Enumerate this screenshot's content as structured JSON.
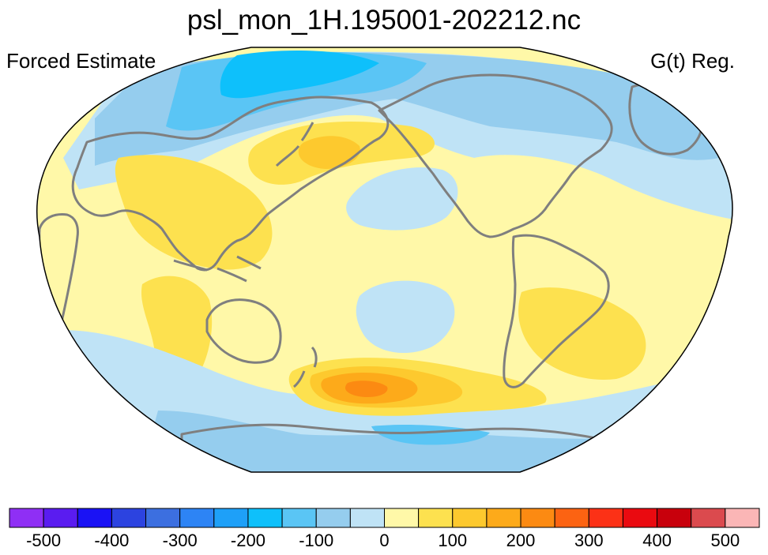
{
  "title": "psl_mon_1H.195001-202212.nc",
  "subtitle_left": "Forced Estimate",
  "subtitle_right": "G(t) Reg.",
  "colorbar": {
    "colors": [
      "#8f2ff5",
      "#5a1cf0",
      "#1a12f5",
      "#2c43e0",
      "#3c6fe0",
      "#2d84f5",
      "#1ea0f8",
      "#0ec0fb",
      "#5ac5f5",
      "#95cdee",
      "#bfe3f6",
      "#fff8a8",
      "#fde14f",
      "#fdc92e",
      "#fdaa1a",
      "#fc8a12",
      "#fc6312",
      "#fc3116",
      "#ea0a10",
      "#c8000c",
      "#db4a4e",
      "#fbb6b6"
    ],
    "ticks": [
      "-500",
      "-400",
      "-300",
      "-200",
      "-100",
      "0",
      "100",
      "200",
      "300",
      "400",
      "500"
    ]
  },
  "colors": {
    "land_outline": "#7f7f7f",
    "ocean_base": "#fff8a8"
  }
}
